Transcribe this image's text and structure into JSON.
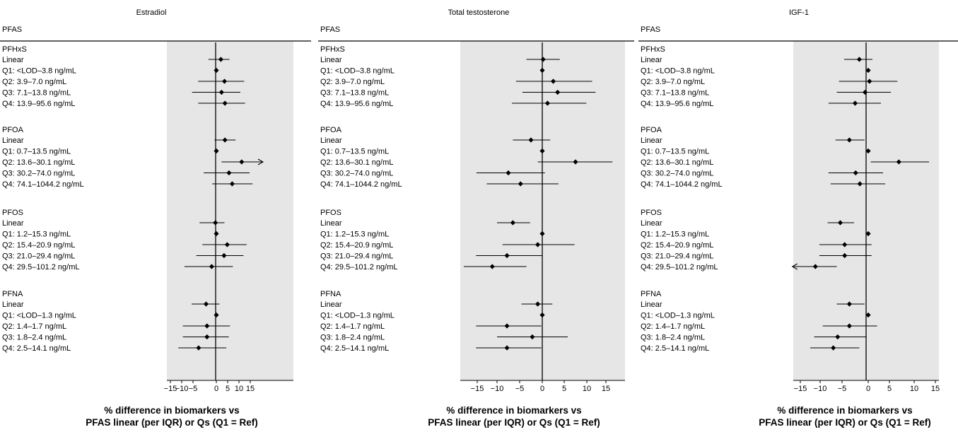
{
  "colors": {
    "shade": "#e6e6e6",
    "line": "#000000",
    "point": "#000000"
  },
  "chart_data": [
    {
      "type": "forest",
      "title": "Estradiol",
      "column_header": "PFAS",
      "x_tick_labels": [
        "−15",
        "−10",
        "−5",
        "0",
        "5",
        "10",
        "15"
      ],
      "xlim": [
        -16,
        18
      ],
      "xlabel_lines": [
        "% difference in biomarkers vs",
        "PFAS linear (per IQR) or Qs (Q1 = Ref)"
      ],
      "groups": [
        {
          "name": "PFHxS",
          "rows": [
            {
              "label": "Linear",
              "est": 2.0,
              "lo": -1.7,
              "hi": 5.8
            },
            {
              "label": "Q1: <LOD–3.8 ng/mL",
              "est": 0,
              "lo": 0,
              "hi": 0
            },
            {
              "label": "Q2: 3.9–7.0 ng/mL",
              "est": 3.6,
              "lo": -3.9,
              "hi": 12.3
            },
            {
              "label": "Q3: 7.1–13.8 ng/mL",
              "est": 2.3,
              "lo": -5.4,
              "hi": 10.6
            },
            {
              "label": "Q4: 13.9–95.6 ng/mL",
              "est": 3.8,
              "lo": -3.9,
              "hi": 12.7
            }
          ]
        },
        {
          "name": "PFOA",
          "rows": [
            {
              "label": "Linear",
              "est": 3.8,
              "lo": -0.4,
              "hi": 8.5
            },
            {
              "label": "Q1: 0.7–13.5 ng/mL",
              "est": 0,
              "lo": 0,
              "hi": 0
            },
            {
              "label": "Q2: 13.6–30.1 ng/mL",
              "est": 11.2,
              "lo": 2.3,
              "hi": 20.6,
              "arrow_right": true
            },
            {
              "label": "Q3: 30.2–74.0 ng/mL",
              "est": 5.6,
              "lo": -2.7,
              "hi": 14.7
            },
            {
              "label": "Q4: 74.1–1044.2 ng/mL",
              "est": 7.0,
              "lo": -0.9,
              "hi": 16.0
            }
          ]
        },
        {
          "name": "PFOS",
          "rows": [
            {
              "label": "Linear",
              "est": -0.2,
              "lo": -3.6,
              "hi": 3.6
            },
            {
              "label": "Q1: 1.2–15.3 ng/mL",
              "est": 0,
              "lo": 0,
              "hi": 0
            },
            {
              "label": "Q2: 15.4–20.9 ng/mL",
              "est": 4.8,
              "lo": -3.0,
              "hi": 13.4
            },
            {
              "label": "Q3: 21.0–29.4 ng/mL",
              "est": 3.4,
              "lo": -4.3,
              "hi": 12.0
            },
            {
              "label": "Q4: 29.5–101.2 ng/mL",
              "est": -1.0,
              "lo": -8.8,
              "hi": 7.3
            }
          ]
        },
        {
          "name": "PFNA",
          "rows": [
            {
              "label": "Linear",
              "est": -2.2,
              "lo": -5.6,
              "hi": 1.4
            },
            {
              "label": "Q1: <LOD–1.3 ng/mL",
              "est": 0,
              "lo": 0,
              "hi": 0
            },
            {
              "label": "Q2: 1.4–1.7 ng/mL",
              "est": -2.0,
              "lo": -9.5,
              "hi": 6.0
            },
            {
              "label": "Q3: 1.8–2.4 ng/mL",
              "est": -2.0,
              "lo": -9.5,
              "hi": 5.5
            },
            {
              "label": "Q4: 2.5–14.1 ng/mL",
              "est": -3.8,
              "lo": -11.5,
              "hi": 4.4
            }
          ]
        }
      ]
    },
    {
      "type": "forest",
      "title": "Total testosterone",
      "column_header": "PFAS",
      "x_tick_labels": [
        "−15",
        "−10",
        "−5",
        "0",
        "5",
        "10",
        "15"
      ],
      "xlim": [
        -20,
        20
      ],
      "xlabel_lines": [
        "% difference in biomarkers vs",
        "PFAS linear (per IQR) or Qs (Q1 = Ref)"
      ],
      "groups": [
        {
          "name": "PFHxS",
          "rows": [
            {
              "label": "Linear",
              "est": 0.2,
              "lo": -3.5,
              "hi": 4.0
            },
            {
              "label": "Q1: <LOD–3.8 ng/mL",
              "est": 0,
              "lo": 0,
              "hi": 0
            },
            {
              "label": "Q2: 3.9–7.0 ng/mL",
              "est": 2.5,
              "lo": -5.8,
              "hi": 11.4
            },
            {
              "label": "Q3: 7.1–13.8 ng/mL",
              "est": 3.5,
              "lo": -4.4,
              "hi": 12.3
            },
            {
              "label": "Q4: 13.9–95.6 ng/mL",
              "est": 1.2,
              "lo": -6.7,
              "hi": 9.9
            }
          ]
        },
        {
          "name": "PFOA",
          "rows": [
            {
              "label": "Linear",
              "est": -2.5,
              "lo": -6.5,
              "hi": 1.8
            },
            {
              "label": "Q1: 0.7–13.5 ng/mL",
              "est": 0,
              "lo": 0,
              "hi": 0
            },
            {
              "label": "Q2: 13.6–30.1 ng/mL",
              "est": 7.5,
              "lo": -1.0,
              "hi": 16.7
            },
            {
              "label": "Q3: 30.2–74.0 ng/mL",
              "est": -7.5,
              "lo": -15.2,
              "hi": 0.6
            },
            {
              "label": "Q4: 74.1–1044.2 ng/mL",
              "est": -4.8,
              "lo": -12.6,
              "hi": 3.7
            }
          ]
        },
        {
          "name": "PFOS",
          "rows": [
            {
              "label": "Linear",
              "est": -6.5,
              "lo": -10.0,
              "hi": -2.7
            },
            {
              "label": "Q1: 1.2–15.3 ng/mL",
              "est": 0,
              "lo": 0,
              "hi": 0
            },
            {
              "label": "Q2: 15.4–20.9 ng/mL",
              "est": -1.0,
              "lo": -8.8,
              "hi": 7.3
            },
            {
              "label": "Q3: 21.0–29.4 ng/mL",
              "est": -7.8,
              "lo": -15.3,
              "hi": 0.0
            },
            {
              "label": "Q4: 29.5–101.2 ng/mL",
              "est": -11.2,
              "lo": -18.4,
              "hi": -3.5
            }
          ]
        },
        {
          "name": "PFNA",
          "rows": [
            {
              "label": "Linear",
              "est": -1.0,
              "lo": -4.6,
              "hi": 2.3
            },
            {
              "label": "Q1: <LOD–1.3 ng/mL",
              "est": 0,
              "lo": 0,
              "hi": 0
            },
            {
              "label": "Q2: 1.4–1.7 ng/mL",
              "est": -7.8,
              "lo": -15.3,
              "hi": -0.2
            },
            {
              "label": "Q3: 1.8–2.4 ng/mL",
              "est": -2.2,
              "lo": -10.0,
              "hi": 5.8
            },
            {
              "label": "Q4: 2.5–14.1 ng/mL",
              "est": -7.8,
              "lo": -15.3,
              "hi": -0.2
            }
          ]
        }
      ]
    },
    {
      "type": "forest",
      "title": "IGF-1",
      "column_header": "PFAS",
      "x_tick_labels": [
        "−15",
        "−10",
        "−5",
        "0",
        "5",
        "10",
        "15"
      ],
      "xlim": [
        -17,
        17
      ],
      "xlabel_lines": [
        "% difference in biomarkers vs",
        "PFAS linear (per IQR) or Qs (Q1 = Ref)"
      ],
      "groups": [
        {
          "name": "PFHxS",
          "rows": [
            {
              "label": "Linear",
              "est": -1.7,
              "lo": -4.6,
              "hi": 1.0
            },
            {
              "label": "Q1: <LOD–3.8 ng/mL",
              "est": 0,
              "lo": 0,
              "hi": 0
            },
            {
              "label": "Q2: 3.9–7.0 ng/mL",
              "est": 0.3,
              "lo": -5.7,
              "hi": 6.6
            },
            {
              "label": "Q3: 7.1–13.8 ng/mL",
              "est": -0.6,
              "lo": -6.2,
              "hi": 5.3
            },
            {
              "label": "Q4: 13.9–95.6 ng/mL",
              "est": -2.5,
              "lo": -8.1,
              "hi": 3.0
            }
          ]
        },
        {
          "name": "PFOA",
          "rows": [
            {
              "label": "Linear",
              "est": -3.6,
              "lo": -6.5,
              "hi": -0.7
            },
            {
              "label": "Q1: 0.7–13.5 ng/mL",
              "est": 0,
              "lo": 0,
              "hi": 0
            },
            {
              "label": "Q2: 13.6–30.1 ng/mL",
              "est": 6.9,
              "lo": 0.6,
              "hi": 13.5
            },
            {
              "label": "Q3: 30.2–74.0 ng/mL",
              "est": -2.4,
              "lo": -8.1,
              "hi": 3.5
            },
            {
              "label": "Q4: 74.1–1044.2 ng/mL",
              "est": -1.6,
              "lo": -7.6,
              "hi": 4.0
            }
          ]
        },
        {
          "name": "PFOS",
          "rows": [
            {
              "label": "Linear",
              "est": -5.4,
              "lo": -8.3,
              "hi": -2.7
            },
            {
              "label": "Q1: 1.2–15.3 ng/mL",
              "est": 0,
              "lo": 0,
              "hi": 0
            },
            {
              "label": "Q2: 15.4–20.9 ng/mL",
              "est": -4.5,
              "lo": -10.2,
              "hi": 0.8
            },
            {
              "label": "Q3: 21.0–29.4 ng/mL",
              "est": -4.5,
              "lo": -10.2,
              "hi": 0.8
            },
            {
              "label": "Q4: 29.5–101.2 ng/mL",
              "est": -11.2,
              "lo": -17.0,
              "hi": -6.2,
              "arrow_left": true
            }
          ]
        },
        {
          "name": "PFNA",
          "rows": [
            {
              "label": "Linear",
              "est": -3.6,
              "lo": -6.2,
              "hi": -0.7
            },
            {
              "label": "Q1: <LOD–1.3 ng/mL",
              "est": 0,
              "lo": 0,
              "hi": 0
            },
            {
              "label": "Q2: 1.4–1.7 ng/mL",
              "est": -3.6,
              "lo": -9.4,
              "hi": 2.1
            },
            {
              "label": "Q3: 1.8–2.4 ng/mL",
              "est": -6.0,
              "lo": -11.5,
              "hi": -0.3
            },
            {
              "label": "Q4: 2.5–14.1 ng/mL",
              "est": -7.0,
              "lo": -12.5,
              "hi": -1.7
            }
          ]
        }
      ]
    }
  ]
}
